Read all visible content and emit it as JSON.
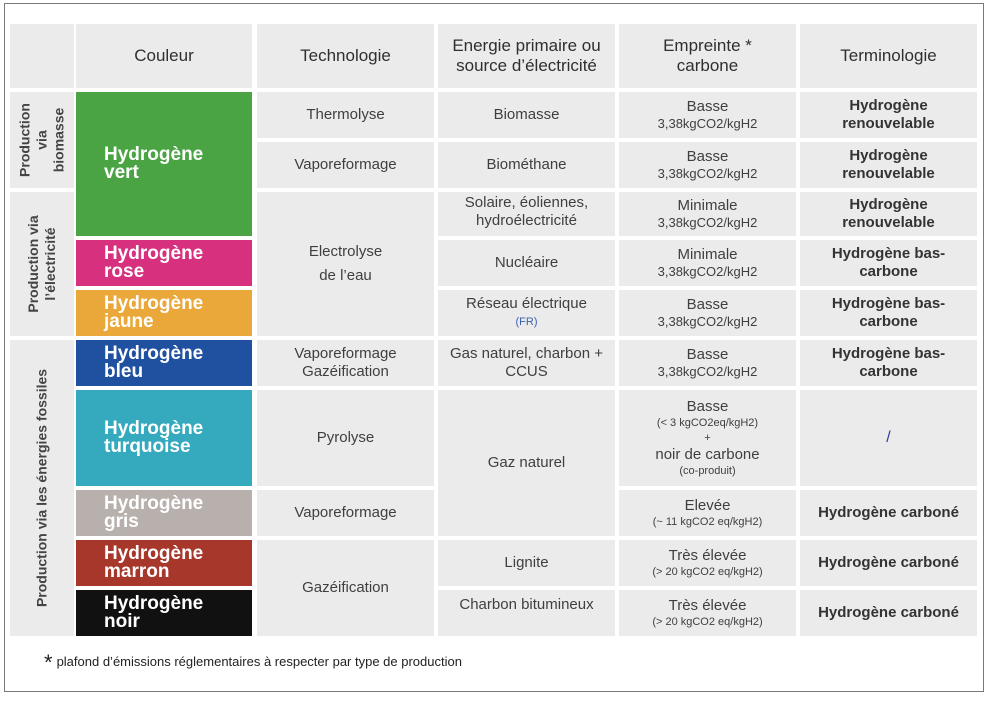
{
  "headers": {
    "couleur": "Couleur",
    "technologie": "Technologie",
    "energie": "Energie primaire ou source d’électricité",
    "empreinte": "Empreinte * carbone",
    "terminologie": "Terminologie"
  },
  "groups": {
    "biomasse": "Production via biomasse",
    "electricite": "Production via l’électricité",
    "fossiles": "Production via les énergies fossiles"
  },
  "colors": {
    "vert": {
      "label": "Hydrogène vert",
      "hex": "#4aa444"
    },
    "rose": {
      "label": "Hydrogène rose",
      "hex": "#d6307e"
    },
    "jaune": {
      "label": "Hydrogène jaune",
      "hex": "#eaa83a"
    },
    "bleu": {
      "label": "Hydrogène bleu",
      "hex": "#2050a0"
    },
    "turquoise": {
      "label": "Hydrogène turquoise",
      "hex": "#35a9bd"
    },
    "gris": {
      "label": "Hydrogène gris",
      "hex": "#b8b0ad"
    },
    "marron": {
      "label": "Hydrogène marron",
      "hex": "#a8372b"
    },
    "noir": {
      "label": "Hydrogène noir",
      "hex": "#111111"
    }
  },
  "technologies": {
    "thermolyse": "Thermolyse",
    "vaporeformage1": "Vaporeformage",
    "electrolyse": "Electrolyse de l’eau",
    "vapo_gaz": "Vaporeformage Gazéification",
    "pyrolyse": "Pyrolyse",
    "vaporeformage2": "Vaporeformage",
    "gazeification": "Gazéification"
  },
  "energies": {
    "biomasse": "Biomasse",
    "biomethane": "Biométhane",
    "solaire": "Solaire, éoliennes, hydroélectricité",
    "nucleaire": "Nucléaire",
    "reseau": "Réseau électrique",
    "reseau_note": "(FR)",
    "gas_naturel_ccus": "Gas naturel, charbon + CCUS",
    "gaz_naturel": "Gaz naturel",
    "lignite": "Lignite",
    "charbon": "Charbon bitumineux"
  },
  "empreintes": {
    "r1": {
      "main": "Basse",
      "sub": "3,38kgCO2/kgH2"
    },
    "r2": {
      "main": "Basse",
      "sub": "3,38kgCO2/kgH2"
    },
    "r3": {
      "main": "Minimale",
      "sub": "3,38kgCO2/kgH2"
    },
    "r4": {
      "main": "Minimale",
      "sub": "3,38kgCO2/kgH2"
    },
    "r5": {
      "main": "Basse",
      "sub": "3,38kgCO2/kgH2"
    },
    "r6": {
      "main": "Basse",
      "sub": "3,38kgCO2/kgH2"
    },
    "r7": {
      "main": "Basse",
      "sub": "(< 3 kgCO2eq/kgH2)",
      "plus": "+",
      "extra": "noir de carbone",
      "extra_sub": "(co-produit)"
    },
    "r8": {
      "main": "Elevée",
      "sub": "(~ 11 kgCO2 eq/kgH2)"
    },
    "r9": {
      "main": "Très élevée",
      "sub": "(> 20 kgCO2 eq/kgH2)"
    },
    "r10": {
      "main": "Très élevée",
      "sub": "(> 20 kgCO2 eq/kgH2)"
    }
  },
  "terminologies": {
    "r1": "Hydrogène renouvelable",
    "r2": "Hydrogène renouvelable",
    "r3": "Hydrogène renouvelable",
    "r4": "Hydrogène bas-carbone",
    "r5": "Hydrogène bas-carbone",
    "r6": "Hydrogène bas-carbone",
    "r7": "/",
    "r8": "Hydrogène carboné",
    "r9": "Hydrogène carboné",
    "r10": "Hydrogène carboné"
  },
  "footnote": {
    "star": "*",
    "text": "plafond d’émissions réglementaires à respecter par type de production"
  }
}
